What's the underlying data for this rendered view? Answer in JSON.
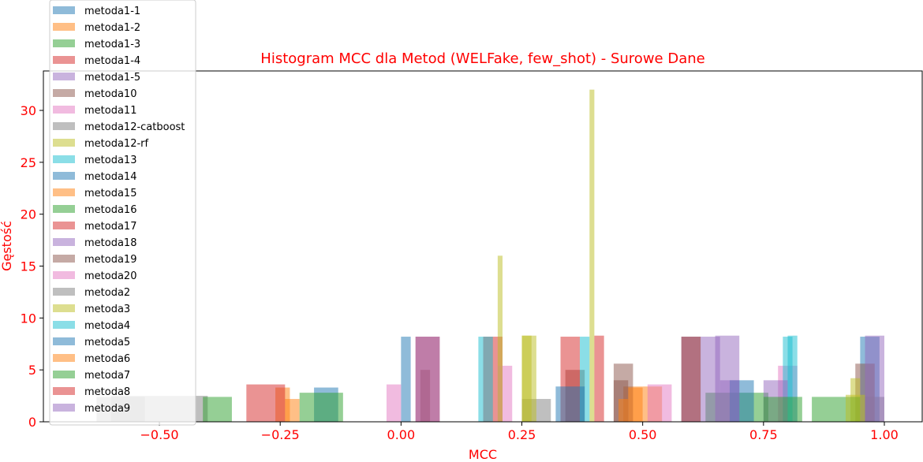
{
  "chart_data": {
    "type": "histogram",
    "title": "Histogram MCC dla Metod (WELFake, few_shot) - Surowe Dane",
    "xlabel": "MCC",
    "ylabel": "Gęstość",
    "xlim": [
      -0.74,
      1.08
    ],
    "ylim": [
      0,
      33.8
    ],
    "xticks": [
      "−0.50",
      "−0.25",
      "0.00",
      "0.25",
      "0.50",
      "0.75",
      "1.00"
    ],
    "xtick_values": [
      -0.5,
      -0.25,
      0.0,
      0.25,
      0.5,
      0.75,
      1.0
    ],
    "yticks": [
      "0",
      "5",
      "10",
      "15",
      "20",
      "25",
      "30"
    ],
    "ytick_values": [
      0,
      5,
      10,
      15,
      20,
      25,
      30
    ],
    "legend_position": "upper-left",
    "label_color": "#ff0000",
    "series": [
      {
        "name": "metoda1-1",
        "color": "#1f77b4",
        "bins": [
          [
            0.58,
            0.62,
            8.2
          ],
          [
            0.95,
            0.99,
            8.2
          ]
        ]
      },
      {
        "name": "metoda1-2",
        "color": "#ff7f0e",
        "bins": [
          [
            0.46,
            0.5,
            3.4
          ],
          [
            0.5,
            0.54,
            3.4
          ]
        ]
      },
      {
        "name": "metoda1-3",
        "color": "#2ca02c",
        "bins": [
          [
            0.63,
            0.69,
            2.8
          ],
          [
            0.69,
            0.76,
            2.8
          ]
        ]
      },
      {
        "name": "metoda1-4",
        "color": "#d62728",
        "bins": [
          [
            0.17,
            0.21,
            8.2
          ],
          [
            0.58,
            0.62,
            8.2
          ]
        ]
      },
      {
        "name": "metoda1-5",
        "color": "#9467bd",
        "bins": [
          [
            0.62,
            0.66,
            8.2
          ],
          [
            0.66,
            0.7,
            4.0
          ]
        ]
      },
      {
        "name": "metoda10",
        "color": "#8c564b",
        "bins": [
          [
            0.34,
            0.38,
            5.0
          ],
          [
            0.44,
            0.48,
            5.6
          ],
          [
            0.94,
            0.98,
            5.6
          ]
        ]
      },
      {
        "name": "metoda11",
        "color": "#e377c2",
        "bins": [
          [
            0.2,
            0.23,
            5.4
          ],
          [
            0.78,
            0.82,
            5.4
          ]
        ]
      },
      {
        "name": "metoda12-catboost",
        "color": "#7f7f7f",
        "bins": [
          [
            -0.6,
            -0.4,
            2.5
          ],
          [
            0.25,
            0.31,
            2.2
          ]
        ]
      },
      {
        "name": "metoda12-rf",
        "color": "#bcbd22",
        "bins": [
          [
            0.2,
            0.21,
            16.0
          ],
          [
            0.39,
            0.4,
            32.0
          ],
          [
            0.25,
            0.27,
            8.3
          ],
          [
            0.93,
            0.95,
            4.2
          ]
        ]
      },
      {
        "name": "metoda13",
        "color": "#17becf",
        "bins": [
          [
            0.16,
            0.19,
            8.2
          ],
          [
            0.79,
            0.81,
            8.2
          ]
        ]
      },
      {
        "name": "metoda14",
        "color": "#1f77b4",
        "bins": [
          [
            0.0,
            0.02,
            8.2
          ],
          [
            0.68,
            0.73,
            4.0
          ]
        ]
      },
      {
        "name": "metoda15",
        "color": "#ff7f0e",
        "bins": [
          [
            -0.26,
            -0.23,
            3.3
          ],
          [
            0.47,
            0.5,
            3.3
          ]
        ]
      },
      {
        "name": "metoda16",
        "color": "#2ca02c",
        "bins": [
          [
            -0.41,
            -0.35,
            2.4
          ],
          [
            0.85,
            0.95,
            2.4
          ]
        ]
      },
      {
        "name": "metoda17",
        "color": "#d62728",
        "bins": [
          [
            0.33,
            0.37,
            8.2
          ],
          [
            0.4,
            0.42,
            8.3
          ]
        ]
      },
      {
        "name": "metoda18",
        "color": "#9467bd",
        "bins": [
          [
            0.65,
            0.7,
            8.3
          ],
          [
            0.75,
            0.8,
            4.0
          ]
        ]
      },
      {
        "name": "metoda19",
        "color": "#8c564b",
        "bins": [
          [
            0.04,
            0.06,
            5.0
          ],
          [
            0.44,
            0.47,
            4.0
          ]
        ]
      },
      {
        "name": "metoda20",
        "color": "#e377c2",
        "bins": [
          [
            -0.03,
            0.0,
            3.6
          ],
          [
            0.51,
            0.56,
            3.6
          ]
        ]
      },
      {
        "name": "metoda2",
        "color": "#7f7f7f",
        "bins": [
          [
            -0.63,
            -0.53,
            2.4
          ],
          [
            0.96,
            1.0,
            2.4
          ]
        ]
      },
      {
        "name": "metoda3",
        "color": "#bcbd22",
        "bins": [
          [
            0.25,
            0.28,
            8.3
          ],
          [
            0.92,
            0.96,
            2.6
          ]
        ]
      },
      {
        "name": "metoda4",
        "color": "#17becf",
        "bins": [
          [
            0.37,
            0.39,
            8.2
          ],
          [
            0.8,
            0.82,
            8.3
          ]
        ]
      },
      {
        "name": "metoda5",
        "color": "#1f77b4",
        "bins": [
          [
            -0.18,
            -0.13,
            3.3
          ],
          [
            0.32,
            0.38,
            3.4
          ]
        ]
      },
      {
        "name": "metoda6",
        "color": "#ff7f0e",
        "bins": [
          [
            -0.24,
            -0.21,
            2.2
          ],
          [
            0.45,
            0.47,
            2.2
          ]
        ]
      },
      {
        "name": "metoda7",
        "color": "#2ca02c",
        "bins": [
          [
            -0.21,
            -0.12,
            2.8
          ],
          [
            0.75,
            0.83,
            2.4
          ]
        ]
      },
      {
        "name": "metoda8",
        "color": "#d62728",
        "bins": [
          [
            -0.32,
            -0.24,
            3.6
          ],
          [
            0.03,
            0.08,
            8.2
          ]
        ]
      },
      {
        "name": "metoda9",
        "color": "#9467bd",
        "bins": [
          [
            0.03,
            0.08,
            8.2
          ],
          [
            0.96,
            1.0,
            8.3
          ]
        ]
      }
    ]
  }
}
